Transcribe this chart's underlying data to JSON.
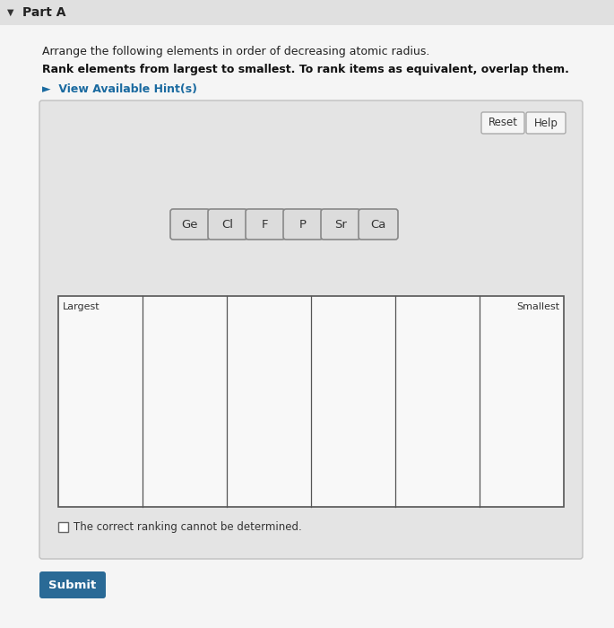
{
  "page_bg": "#f0f0f0",
  "title_part": "Part A",
  "line1": "Arrange the following elements in order of decreasing atomic radius.",
  "line2": "Rank elements from largest to smallest. To rank items as equivalent, overlap them.",
  "hint_text": "►  View Available Hint(s)",
  "hint_color": "#1a6aa0",
  "elements": [
    "Ge",
    "Cl",
    "F",
    "P",
    "Sr",
    "Ca"
  ],
  "element_box_color": "#dcdcdc",
  "element_box_edge": "#888888",
  "element_text_color": "#333333",
  "reset_label": "Reset",
  "help_label": "Help",
  "btn_bg": "#f5f5f5",
  "btn_edge": "#aaaaaa",
  "largest_label": "Largest",
  "smallest_label": "Smallest",
  "ranking_box_fill": "#f8f8f8",
  "ranking_box_edge": "#555555",
  "checkbox_text": "The correct ranking cannot be determined.",
  "submit_label": "Submit",
  "submit_bg": "#2a6a96",
  "submit_text_color": "#ffffff",
  "num_rank_cols": 6,
  "panel_bg": "#e4e4e4",
  "panel_edge": "#c0c0c0"
}
